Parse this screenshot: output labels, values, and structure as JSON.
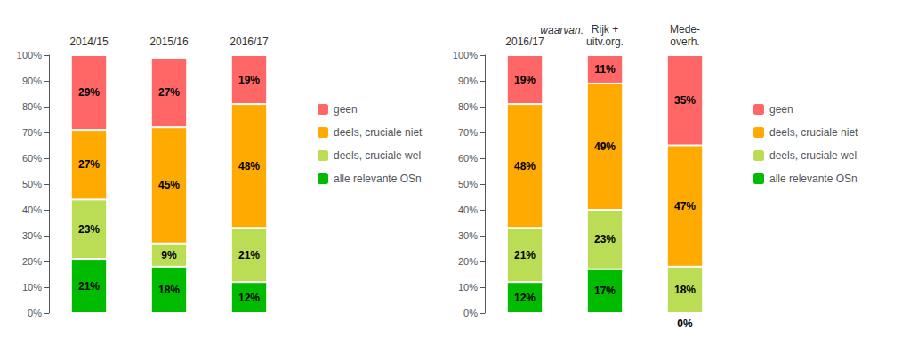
{
  "chart_data": [
    {
      "type": "bar",
      "stacked": true,
      "data_labels": true,
      "grid": false,
      "legend": "right",
      "categories": [
        "2014/15",
        "2015/16",
        "2016/17"
      ],
      "series": [
        {
          "name": "alle relevante OSn",
          "color": "#00BB00",
          "values": [
            21,
            18,
            12
          ],
          "value_labels": [
            "21%",
            "18%",
            "12%"
          ]
        },
        {
          "name": "deels, cruciale wel",
          "color": "#BBDD55",
          "values": [
            23,
            9,
            21
          ],
          "value_labels": [
            "23%",
            "9%",
            "21%"
          ]
        },
        {
          "name": "deels, cruciale niet",
          "color": "#FFAA00",
          "values": [
            27,
            45,
            48
          ],
          "value_labels": [
            "27%",
            "45%",
            "48%"
          ]
        },
        {
          "name": "geen",
          "color": "#FF6666",
          "values": [
            29,
            27,
            19
          ],
          "value_labels": [
            "29%",
            "27%",
            "19%"
          ]
        }
      ],
      "ylim": [
        0,
        100
      ],
      "yticks": [
        {
          "value": 0,
          "label": "0%"
        },
        {
          "value": 10,
          "label": "10%"
        },
        {
          "value": 20,
          "label": "20%"
        },
        {
          "value": 30,
          "label": "30%"
        },
        {
          "value": 40,
          "label": "40%"
        },
        {
          "value": 50,
          "label": "50%"
        },
        {
          "value": 60,
          "label": "60%"
        },
        {
          "value": 70,
          "label": "70%"
        },
        {
          "value": 80,
          "label": "80%"
        },
        {
          "value": 90,
          "label": "90%"
        },
        {
          "value": 100,
          "label": "100%"
        }
      ]
    },
    {
      "type": "bar",
      "stacked": true,
      "data_labels": true,
      "grid": false,
      "legend": "right",
      "categories": [
        "2016/17",
        "Rijk +\nuitv.org.",
        "Mede-\noverh."
      ],
      "annotations": [
        "waarvan:"
      ],
      "series": [
        {
          "name": "alle relevante OSn",
          "color": "#00BB00",
          "values": [
            12,
            17,
            0
          ],
          "value_labels": [
            "12%",
            "17%",
            "0%"
          ]
        },
        {
          "name": "deels, cruciale wel",
          "color": "#BBDD55",
          "values": [
            21,
            23,
            18
          ],
          "value_labels": [
            "21%",
            "23%",
            "18%"
          ]
        },
        {
          "name": "deels, cruciale niet",
          "color": "#FFAA00",
          "values": [
            48,
            49,
            47
          ],
          "value_labels": [
            "48%",
            "49%",
            "47%"
          ]
        },
        {
          "name": "geen",
          "color": "#FF6666",
          "values": [
            19,
            11,
            35
          ],
          "value_labels": [
            "19%",
            "11%",
            "35%"
          ]
        }
      ],
      "ylim": [
        0,
        100
      ],
      "yticks": [
        {
          "value": 0,
          "label": "0%"
        },
        {
          "value": 10,
          "label": "10%"
        },
        {
          "value": 20,
          "label": "20%"
        },
        {
          "value": 30,
          "label": "30%"
        },
        {
          "value": 40,
          "label": "40%"
        },
        {
          "value": 50,
          "label": "50%"
        },
        {
          "value": 60,
          "label": "60%"
        },
        {
          "value": 70,
          "label": "70%"
        },
        {
          "value": 80,
          "label": "80%"
        },
        {
          "value": 90,
          "label": "90%"
        },
        {
          "value": 100,
          "label": "100%"
        }
      ]
    }
  ]
}
